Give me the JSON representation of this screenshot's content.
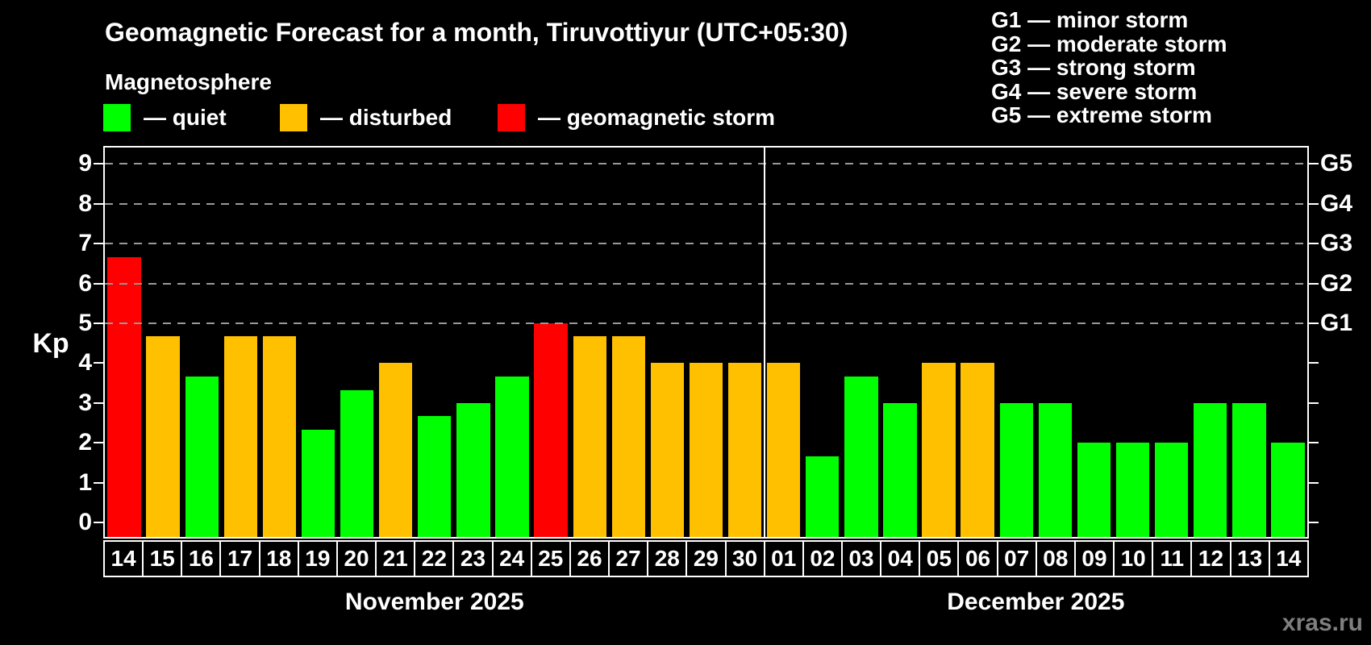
{
  "title": "Geomagnetic Forecast for a month, Tiruvottiyur (UTC+05:30)",
  "subtitle": "Magnetosphere",
  "legend": {
    "items": [
      {
        "key": "quiet",
        "label": "— quiet"
      },
      {
        "key": "disturbed",
        "label": "— disturbed"
      },
      {
        "key": "storm",
        "label": "— geomagnetic storm"
      }
    ]
  },
  "g_legend": [
    "G1 — minor storm",
    "G2 — moderate storm",
    "G3 — strong storm",
    "G4 — severe storm",
    "G5 — extreme storm"
  ],
  "colors": {
    "quiet": "#00ff00",
    "disturbed": "#ffc000",
    "storm": "#ff0000",
    "grid": "#999999",
    "axis": "#ffffff",
    "watermark": "#7f7f7f"
  },
  "watermark": "xras.ru",
  "chart_data": {
    "type": "bar",
    "ylabel": "Kp",
    "ylim": [
      0,
      9.4
    ],
    "yticks": [
      0,
      1,
      2,
      3,
      4,
      5,
      6,
      7,
      8,
      9
    ],
    "gridlines_at": [
      5,
      6,
      7,
      8,
      9
    ],
    "right_scale": [
      {
        "label": "G1",
        "kp": 5
      },
      {
        "label": "G2",
        "kp": 6
      },
      {
        "label": "G3",
        "kp": 7
      },
      {
        "label": "G4",
        "kp": 8
      },
      {
        "label": "G5",
        "kp": 9
      }
    ],
    "months": [
      {
        "label": "November 2025",
        "days": 17
      },
      {
        "label": "December 2025",
        "days": 14
      }
    ],
    "bars": [
      {
        "day": "14",
        "kp": 6.67,
        "status": "storm"
      },
      {
        "day": "15",
        "kp": 4.67,
        "status": "disturbed"
      },
      {
        "day": "16",
        "kp": 3.67,
        "status": "quiet"
      },
      {
        "day": "17",
        "kp": 4.67,
        "status": "disturbed"
      },
      {
        "day": "18",
        "kp": 4.67,
        "status": "disturbed"
      },
      {
        "day": "19",
        "kp": 2.33,
        "status": "quiet"
      },
      {
        "day": "20",
        "kp": 3.33,
        "status": "quiet"
      },
      {
        "day": "21",
        "kp": 4,
        "status": "disturbed"
      },
      {
        "day": "22",
        "kp": 2.67,
        "status": "quiet"
      },
      {
        "day": "23",
        "kp": 3,
        "status": "quiet"
      },
      {
        "day": "24",
        "kp": 3.67,
        "status": "quiet"
      },
      {
        "day": "25",
        "kp": 5,
        "status": "storm"
      },
      {
        "day": "26",
        "kp": 4.67,
        "status": "disturbed"
      },
      {
        "day": "27",
        "kp": 4.67,
        "status": "disturbed"
      },
      {
        "day": "28",
        "kp": 4,
        "status": "disturbed"
      },
      {
        "day": "29",
        "kp": 4,
        "status": "disturbed"
      },
      {
        "day": "30",
        "kp": 4,
        "status": "disturbed"
      },
      {
        "day": "01",
        "kp": 4,
        "status": "disturbed"
      },
      {
        "day": "02",
        "kp": 1.67,
        "status": "quiet"
      },
      {
        "day": "03",
        "kp": 3.67,
        "status": "quiet"
      },
      {
        "day": "04",
        "kp": 3,
        "status": "quiet"
      },
      {
        "day": "05",
        "kp": 4,
        "status": "disturbed"
      },
      {
        "day": "06",
        "kp": 4,
        "status": "disturbed"
      },
      {
        "day": "07",
        "kp": 3,
        "status": "quiet"
      },
      {
        "day": "08",
        "kp": 3,
        "status": "quiet"
      },
      {
        "day": "09",
        "kp": 2,
        "status": "quiet"
      },
      {
        "day": "10",
        "kp": 2,
        "status": "quiet"
      },
      {
        "day": "11",
        "kp": 2,
        "status": "quiet"
      },
      {
        "day": "12",
        "kp": 3,
        "status": "quiet"
      },
      {
        "day": "13",
        "kp": 3,
        "status": "quiet"
      },
      {
        "day": "14",
        "kp": 2,
        "status": "quiet"
      }
    ]
  }
}
